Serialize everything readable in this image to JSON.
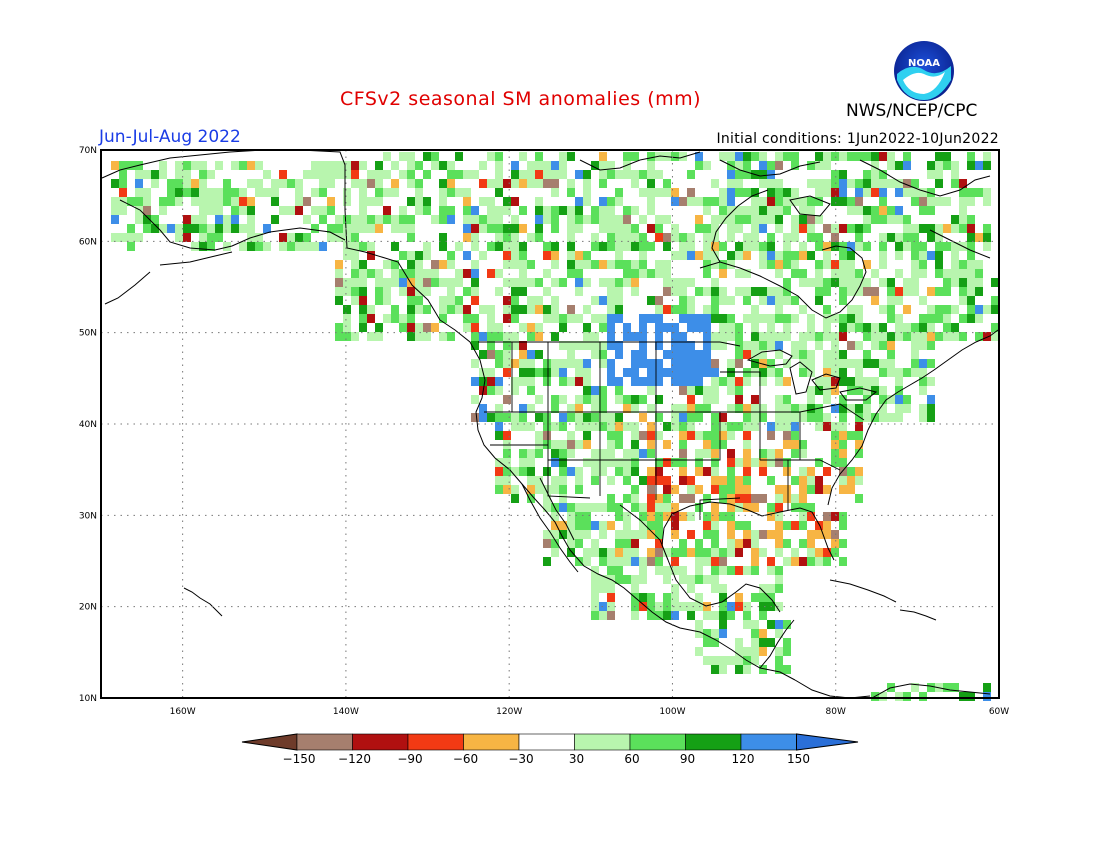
{
  "header": {
    "title": "CFSv2 seasonal SM anomalies (mm)",
    "season": "Jun-Jul-Aug 2022",
    "agency": "NWS/NCEP/CPC",
    "initial_conditions": "Initial conditions: 1Jun2022-10Jun2022",
    "logo_text": "NOAA"
  },
  "colors": {
    "title": "#e00000",
    "season": "#1a3ce6"
  },
  "map": {
    "lon_range": [
      -170,
      -60
    ],
    "lat_range": [
      10,
      70
    ],
    "lat_labels": [
      "70N",
      "60N",
      "50N",
      "40N",
      "30N",
      "20N",
      "10N"
    ],
    "lon_labels": [
      "160W",
      "140W",
      "120W",
      "100W",
      "80W",
      "60W"
    ],
    "grid": "dotted"
  },
  "legend": {
    "ticks": [
      "-150",
      "-120",
      "-90",
      "-60",
      "-30",
      "30",
      "60",
      "90",
      "120",
      "150"
    ],
    "colors": [
      "#6e3b2a",
      "#a67f6e",
      "#b01010",
      "#f23a14",
      "#f7b544",
      "#ffffff",
      "#b8f5ae",
      "#5be05b",
      "#15a015",
      "#3d8ee8",
      "#2a6fd8"
    ]
  }
}
